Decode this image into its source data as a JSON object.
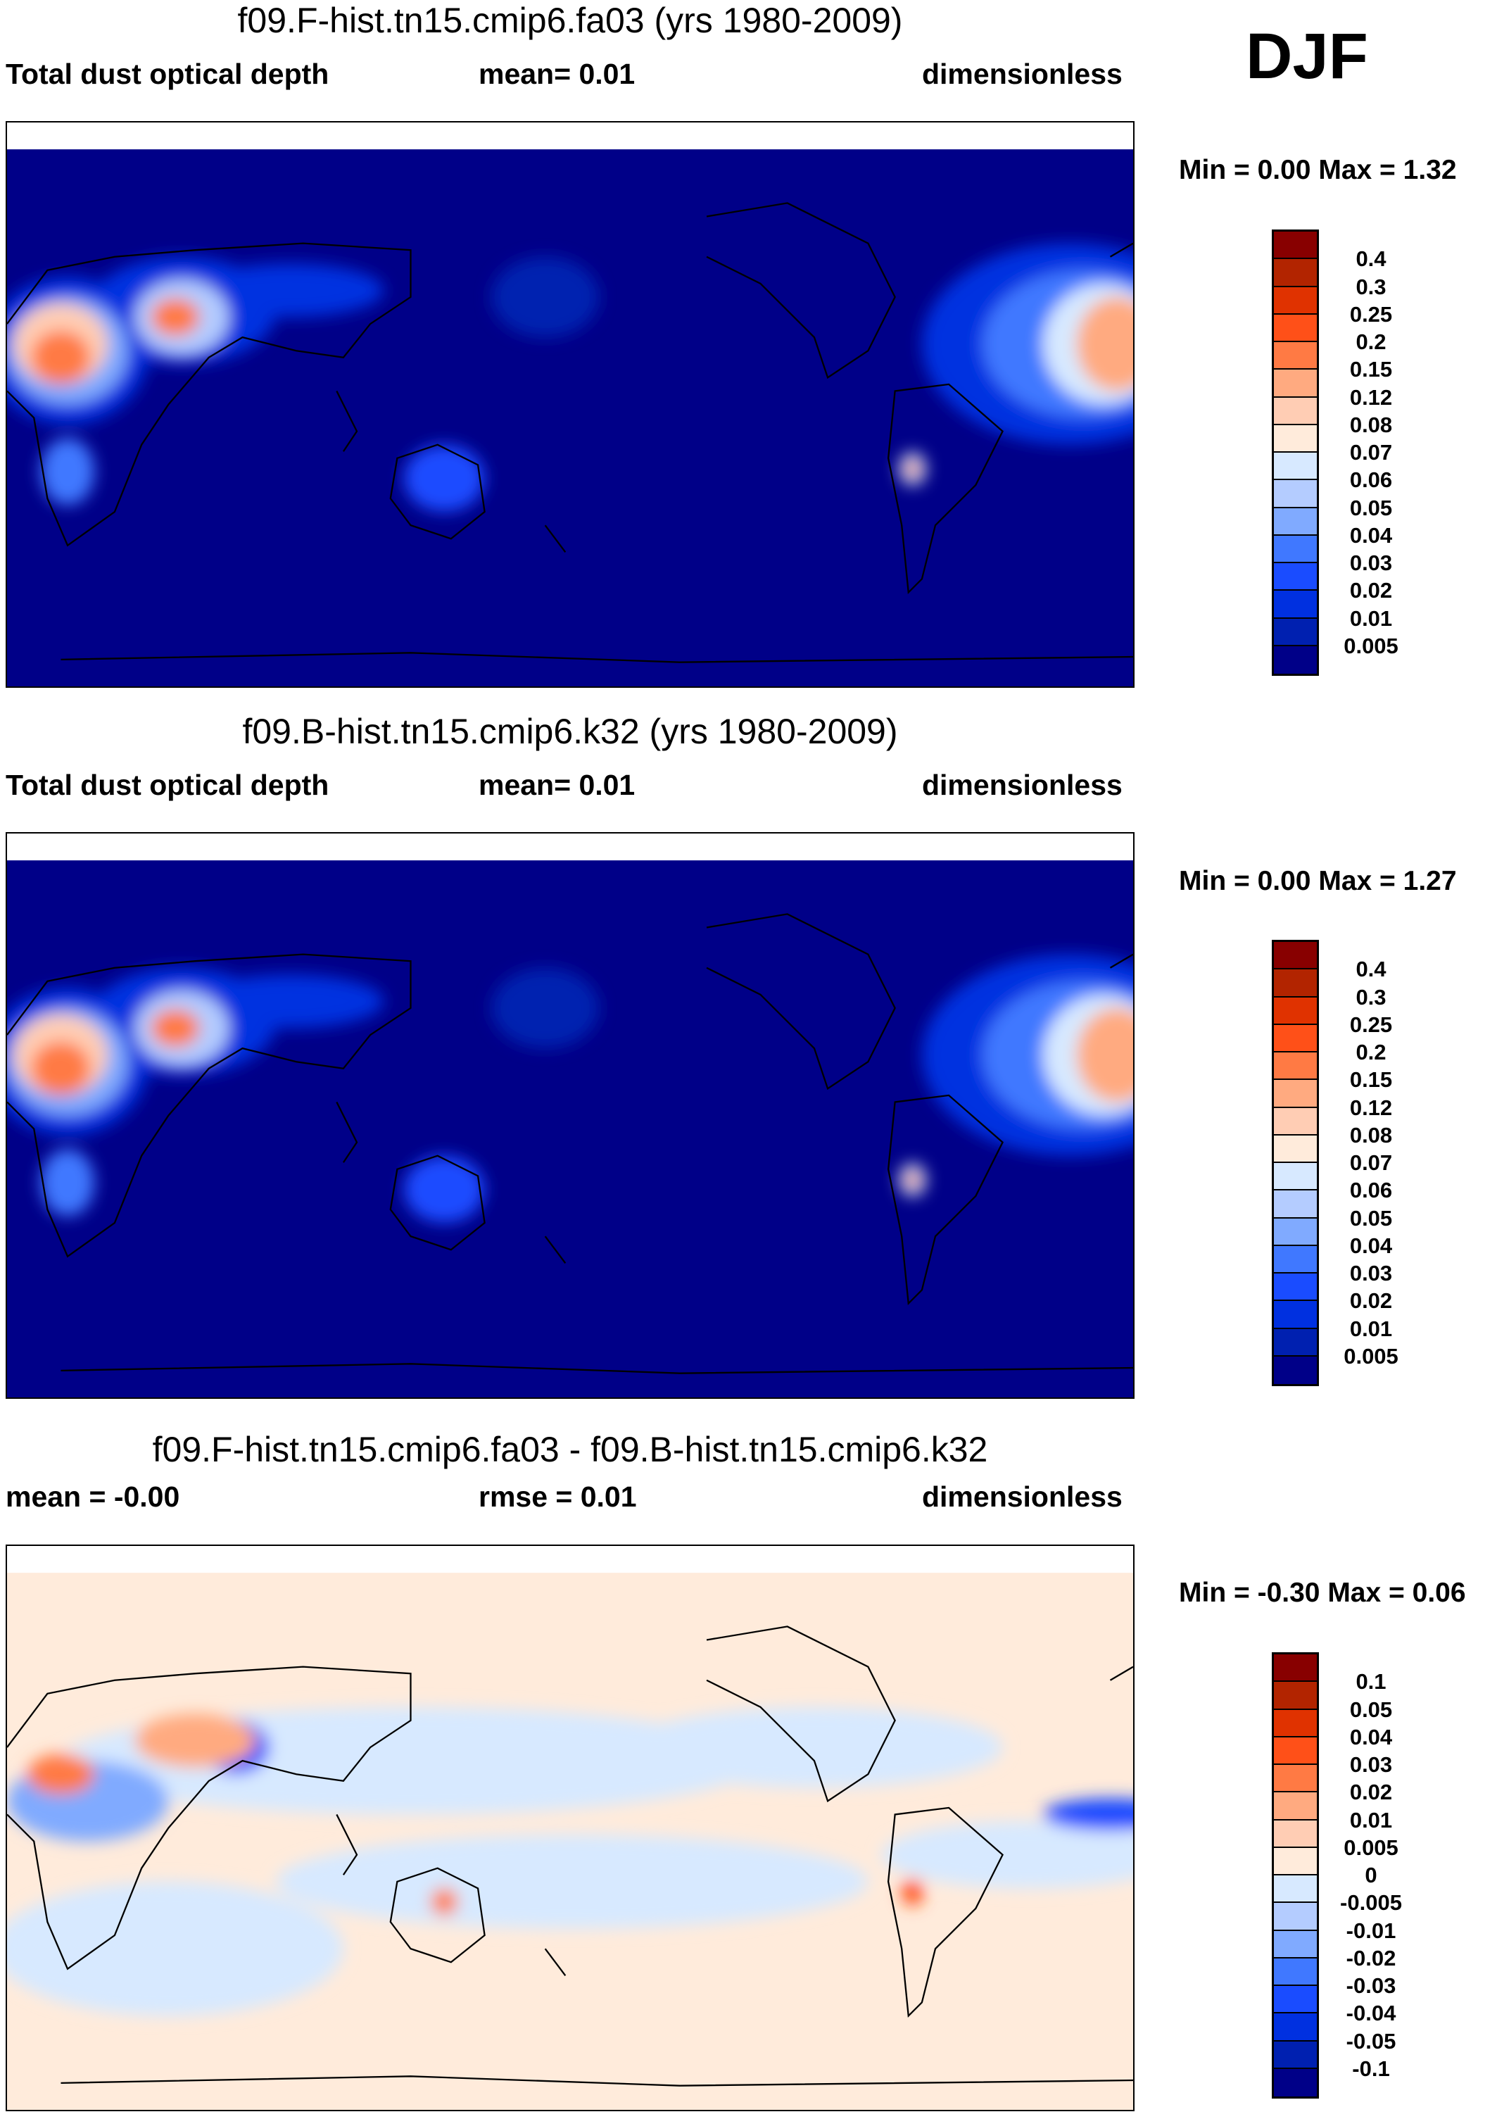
{
  "season": "DJF",
  "colors": {
    "bins": [
      "#880000",
      "#b22400",
      "#e03200",
      "#ff5018",
      "#ff7a44",
      "#ffaa80",
      "#ffcdb4",
      "#ffebdb",
      "#d7e9ff",
      "#b4ccff",
      "#80aaff",
      "#4078ff",
      "#1a4cff",
      "#0030e0",
      "#0020b0",
      "#000088"
    ]
  },
  "chart_data": [
    {
      "type": "heatmap",
      "title": "f09.F-hist.tn15.cmip6.fa03 (yrs 1980-2009)",
      "left": "Total dust optical depth",
      "center": "mean=  0.01",
      "right": "dimensionless",
      "minmax": "Min =   0.00 Max =   1.32",
      "levels": [
        "0.4",
        "0.3",
        "0.25",
        "0.2",
        "0.15",
        "0.12",
        "0.08",
        "0.07",
        "0.06",
        "0.05",
        "0.04",
        "0.03",
        "0.02",
        "0.01",
        "0.005"
      ]
    },
    {
      "type": "heatmap",
      "title": "f09.B-hist.tn15.cmip6.k32 (yrs 1980-2009)",
      "left": "Total dust optical depth",
      "center": "mean=  0.01",
      "right": "dimensionless",
      "minmax": "Min =   0.00 Max =   1.27",
      "levels": [
        "0.4",
        "0.3",
        "0.25",
        "0.2",
        "0.15",
        "0.12",
        "0.08",
        "0.07",
        "0.06",
        "0.05",
        "0.04",
        "0.03",
        "0.02",
        "0.01",
        "0.005"
      ]
    },
    {
      "type": "heatmap",
      "title": "f09.F-hist.tn15.cmip6.fa03 - f09.B-hist.tn15.cmip6.k32",
      "left": "mean =  -0.00",
      "center": "rmse =  0.01",
      "right": "dimensionless",
      "minmax": "Min =  -0.30 Max =   0.06",
      "levels": [
        "0.1",
        "0.05",
        "0.04",
        "0.03",
        "0.02",
        "0.01",
        "0.005",
        "0",
        "-0.005",
        "-0.01",
        "-0.02",
        "-0.03",
        "-0.04",
        "-0.05",
        "-0.1"
      ]
    }
  ]
}
